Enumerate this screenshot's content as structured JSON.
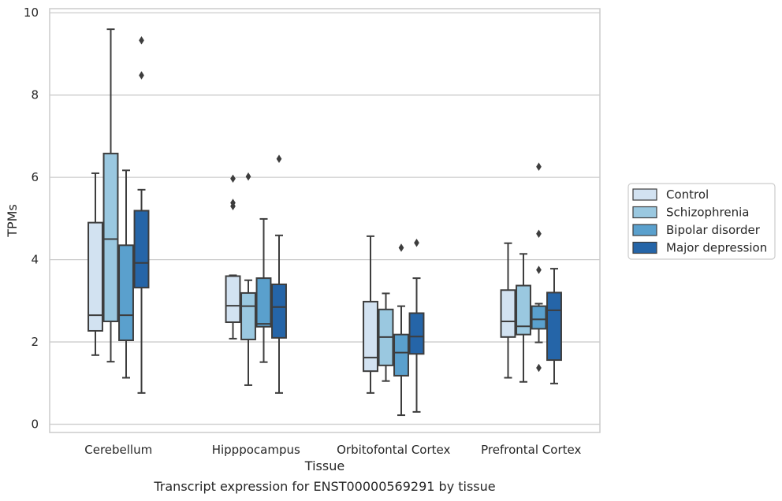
{
  "caption": "Transcript expression for ENST00000569291 by tissue",
  "chart_data": {
    "type": "box",
    "xlabel": "Tissue",
    "ylabel": "TPMs",
    "ylim": [
      -0.2,
      10.1
    ],
    "yticks": [
      0,
      2,
      4,
      6,
      8,
      10
    ],
    "grid": "horizontal",
    "legend_position": "right",
    "categories": [
      "Cerebellum",
      "Hipppocampus",
      "Orbitofontal Cortex",
      "Prefrontal Cortex"
    ],
    "series": [
      {
        "name": "Control",
        "color": "#d2e2f1",
        "boxes": [
          {
            "whisker_low": 1.68,
            "q1": 2.27,
            "median": 2.65,
            "q3": 4.9,
            "whisker_high": 6.1,
            "outliers": []
          },
          {
            "whisker_low": 2.08,
            "q1": 2.48,
            "median": 2.88,
            "q3": 3.6,
            "whisker_high": 3.62,
            "outliers": [
              5.3,
              5.38,
              5.97
            ]
          },
          {
            "whisker_low": 0.76,
            "q1": 1.29,
            "median": 1.62,
            "q3": 2.98,
            "whisker_high": 4.57,
            "outliers": []
          },
          {
            "whisker_low": 1.13,
            "q1": 2.12,
            "median": 2.5,
            "q3": 3.26,
            "whisker_high": 4.4,
            "outliers": []
          }
        ]
      },
      {
        "name": "Schizophrenia",
        "color": "#9ac8e0",
        "boxes": [
          {
            "whisker_low": 1.52,
            "q1": 2.5,
            "median": 4.5,
            "q3": 6.58,
            "whisker_high": 9.6,
            "outliers": []
          },
          {
            "whisker_low": 0.95,
            "q1": 2.06,
            "median": 2.87,
            "q3": 3.19,
            "whisker_high": 3.5,
            "outliers": [
              6.02
            ]
          },
          {
            "whisker_low": 1.05,
            "q1": 1.43,
            "median": 2.12,
            "q3": 2.79,
            "whisker_high": 3.18,
            "outliers": []
          },
          {
            "whisker_low": 1.03,
            "q1": 2.18,
            "median": 2.38,
            "q3": 3.37,
            "whisker_high": 4.14,
            "outliers": []
          }
        ]
      },
      {
        "name": "Bipolar disorder",
        "color": "#5aa0cd",
        "boxes": [
          {
            "whisker_low": 1.13,
            "q1": 2.04,
            "median": 2.65,
            "q3": 4.35,
            "whisker_high": 6.17,
            "outliers": []
          },
          {
            "whisker_low": 1.51,
            "q1": 2.37,
            "median": 2.44,
            "q3": 3.55,
            "whisker_high": 4.99,
            "outliers": []
          },
          {
            "whisker_low": 0.22,
            "q1": 1.18,
            "median": 1.74,
            "q3": 2.18,
            "whisker_high": 2.87,
            "outliers": [
              4.29
            ]
          },
          {
            "whisker_low": 1.99,
            "q1": 2.32,
            "median": 2.55,
            "q3": 2.87,
            "whisker_high": 2.93,
            "outliers": [
              1.37,
              3.75,
              4.63,
              6.26
            ]
          }
        ]
      },
      {
        "name": "Major depression",
        "color": "#2565a8",
        "boxes": [
          {
            "whisker_low": 0.76,
            "q1": 3.32,
            "median": 3.92,
            "q3": 5.19,
            "whisker_high": 5.7,
            "outliers": [
              8.48,
              9.33
            ]
          },
          {
            "whisker_low": 0.76,
            "q1": 2.1,
            "median": 2.85,
            "q3": 3.4,
            "whisker_high": 4.59,
            "outliers": [
              6.45
            ]
          },
          {
            "whisker_low": 0.3,
            "q1": 1.71,
            "median": 2.13,
            "q3": 2.7,
            "whisker_high": 3.55,
            "outliers": [
              4.41
            ]
          },
          {
            "whisker_low": 0.99,
            "q1": 1.56,
            "median": 2.77,
            "q3": 3.2,
            "whisker_high": 3.78,
            "outliers": []
          }
        ]
      }
    ]
  }
}
